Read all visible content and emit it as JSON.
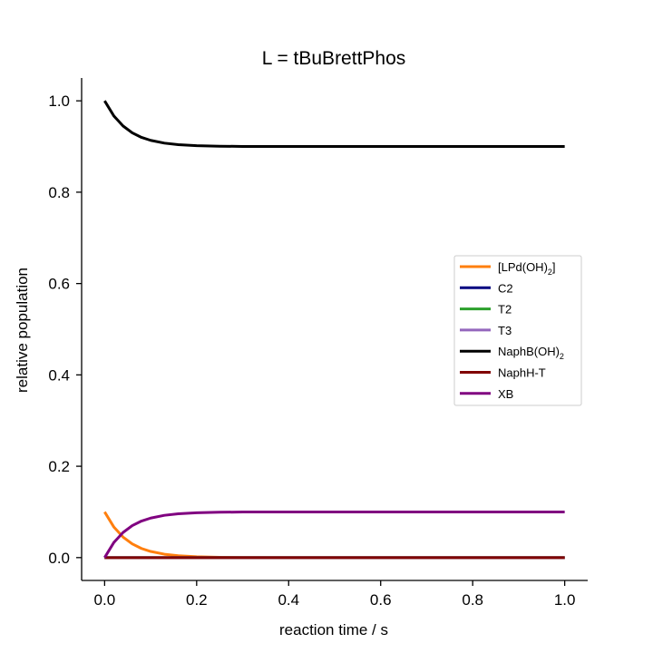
{
  "chart_data": {
    "type": "line",
    "title": "L = tBuBrettPhos",
    "xlabel": "reaction time / s",
    "ylabel": "relative population",
    "xlim": [
      -0.05,
      1.05
    ],
    "ylim": [
      -0.05,
      1.05
    ],
    "xticks": [
      0.0,
      0.2,
      0.4,
      0.6,
      0.8,
      1.0
    ],
    "xtick_labels": [
      "0.0",
      "0.2",
      "0.4",
      "0.6",
      "0.8",
      "1.0"
    ],
    "yticks": [
      0.0,
      0.2,
      0.4,
      0.6,
      0.8,
      1.0
    ],
    "ytick_labels": [
      "0.0",
      "0.2",
      "0.4",
      "0.6",
      "0.8",
      "1.0"
    ],
    "grid": false,
    "spines": "left-bottom",
    "legend_position": "center-right",
    "series": [
      {
        "name": "[LPd(OH)₂]",
        "legend_main": "[LPd(OH)",
        "legend_sub": "2",
        "legend_tail": "]",
        "color": "#ff7f0e",
        "x": [
          0.0,
          0.02,
          0.04,
          0.06,
          0.08,
          0.1,
          0.13,
          0.16,
          0.2,
          0.25,
          0.3,
          0.4,
          0.5,
          0.6,
          0.7,
          0.8,
          0.9,
          1.0
        ],
        "y": [
          0.1,
          0.067,
          0.045,
          0.03,
          0.02,
          0.0135,
          0.0074,
          0.004,
          0.0018,
          0.0007,
          0.0002,
          0.0,
          0.0,
          0.0,
          0.0,
          0.0,
          0.0,
          0.0
        ]
      },
      {
        "name": "C2",
        "color": "#000080",
        "x": [
          0.0,
          1.0
        ],
        "y": [
          0.0,
          0.0
        ]
      },
      {
        "name": "T2",
        "color": "#2ca02c",
        "x": [
          0.0,
          1.0
        ],
        "y": [
          0.0,
          0.0
        ]
      },
      {
        "name": "T3",
        "color": "#9467bd",
        "x": [
          0.0,
          1.0
        ],
        "y": [
          0.0,
          0.0
        ]
      },
      {
        "name": "NaphB(OH)₂",
        "legend_main": "NaphB(OH)",
        "legend_sub": "2",
        "legend_tail": "",
        "color": "#000000",
        "x": [
          0.0,
          0.02,
          0.04,
          0.06,
          0.08,
          0.1,
          0.13,
          0.16,
          0.2,
          0.25,
          0.3,
          0.4,
          0.5,
          0.6,
          0.7,
          0.8,
          0.9,
          1.0
        ],
        "y": [
          1.0,
          0.967,
          0.945,
          0.93,
          0.92,
          0.9135,
          0.9074,
          0.904,
          0.9018,
          0.9007,
          0.9002,
          0.9,
          0.9,
          0.9,
          0.9,
          0.9,
          0.9,
          0.9
        ]
      },
      {
        "name": "NaphH-T",
        "color": "#800000",
        "x": [
          0.0,
          1.0
        ],
        "y": [
          0.0,
          0.0
        ]
      },
      {
        "name": "XB",
        "color": "#800080",
        "x": [
          0.0,
          0.02,
          0.04,
          0.06,
          0.08,
          0.1,
          0.13,
          0.16,
          0.2,
          0.25,
          0.3,
          0.4,
          0.5,
          0.6,
          0.7,
          0.8,
          0.9,
          1.0
        ],
        "y": [
          0.0,
          0.033,
          0.055,
          0.07,
          0.08,
          0.0865,
          0.0926,
          0.096,
          0.0982,
          0.0993,
          0.0998,
          0.1,
          0.1,
          0.1,
          0.1,
          0.1,
          0.1,
          0.1
        ]
      }
    ]
  }
}
